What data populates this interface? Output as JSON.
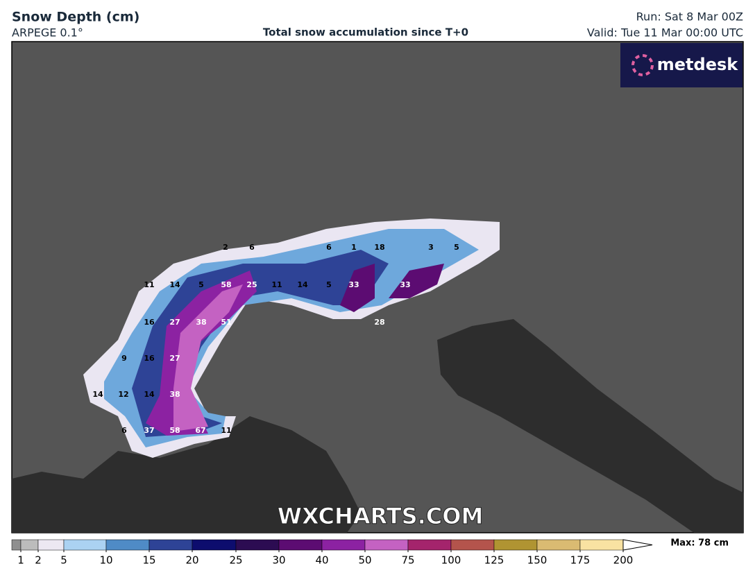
{
  "header": {
    "title": "Snow Depth (cm)",
    "model": "ARPEGE 0.1°",
    "subtitle": "Total snow accumulation since T+0",
    "run": "Run: Sat 8 Mar 00Z",
    "valid": "Valid: Tue 11 Mar 00:00 UTC"
  },
  "logo": "metdesk",
  "watermark": "WXCHARTS.COM",
  "map_labels": [
    2,
    6,
    6,
    1,
    18,
    3,
    5,
    11,
    14,
    5,
    58,
    25,
    11,
    14,
    5,
    33,
    33,
    16,
    27,
    38,
    51,
    28,
    9,
    16,
    27,
    14,
    12,
    14,
    38,
    6,
    37,
    58,
    67,
    11
  ],
  "colorbar": {
    "levels": [
      1,
      2,
      5,
      10,
      15,
      20,
      25,
      30,
      40,
      50,
      75,
      100,
      125,
      150,
      175,
      200
    ],
    "colors": [
      "#bcbcbc",
      "#ece8f2",
      "#abd2f2",
      "#4f8bc6",
      "#2e4396",
      "#0d0d6e",
      "#2c0c52",
      "#5c0c72",
      "#8c22a2",
      "#c462c2",
      "#a4246c",
      "#b4544c",
      "#b09432",
      "#dabb72",
      "#f9e2a2"
    ],
    "under_color": "#8f8f8f",
    "over_color": "#ffffff",
    "max_label": "Max: 78 cm"
  }
}
